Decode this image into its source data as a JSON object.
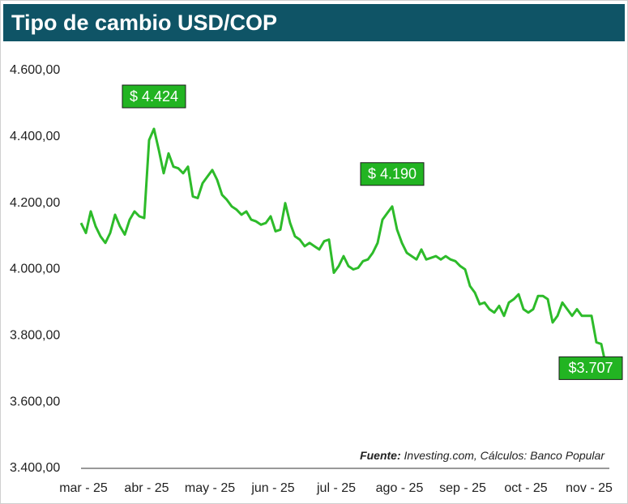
{
  "chart_data": {
    "type": "line",
    "title": "Tipo de cambio USD/COP",
    "categories": [
      "mar - 25",
      null,
      null,
      null,
      null,
      null,
      null,
      null,
      null,
      null,
      null,
      null,
      null,
      "abr - 25",
      null,
      null,
      null,
      null,
      null,
      null,
      null,
      null,
      null,
      null,
      null,
      null,
      "may - 25",
      null,
      null,
      null,
      null,
      null,
      null,
      null,
      null,
      null,
      null,
      null,
      null,
      "jun - 25",
      null,
      null,
      null,
      null,
      null,
      null,
      null,
      null,
      null,
      null,
      null,
      null,
      "jul - 25",
      null,
      null,
      null,
      null,
      null,
      null,
      null,
      null,
      null,
      null,
      null,
      null,
      "ago - 25",
      null,
      null,
      null,
      null,
      null,
      null,
      null,
      null,
      null,
      null,
      null,
      null,
      "sep - 25",
      null,
      null,
      null,
      null,
      null,
      null,
      null,
      null,
      null,
      null,
      null,
      null,
      "oct - 25",
      null,
      null,
      null,
      null,
      null,
      null,
      null,
      null,
      null,
      null,
      null,
      null,
      "nov - 25",
      null,
      null,
      null,
      null
    ],
    "values": [
      4140,
      4110,
      4175,
      4130,
      4100,
      4080,
      4110,
      4165,
      4130,
      4105,
      4150,
      4175,
      4160,
      4155,
      4390,
      4424,
      4360,
      4290,
      4350,
      4310,
      4305,
      4290,
      4310,
      4220,
      4215,
      4260,
      4280,
      4300,
      4270,
      4225,
      4210,
      4190,
      4180,
      4165,
      4175,
      4150,
      4145,
      4135,
      4140,
      4160,
      4115,
      4120,
      4200,
      4140,
      4100,
      4090,
      4070,
      4080,
      4070,
      4060,
      4085,
      4090,
      3990,
      4010,
      4040,
      4010,
      4000,
      4005,
      4025,
      4030,
      4050,
      4080,
      4150,
      4170,
      4190,
      4120,
      4080,
      4050,
      4040,
      4030,
      4060,
      4030,
      4035,
      4040,
      4030,
      4040,
      4030,
      4025,
      4010,
      4000,
      3950,
      3930,
      3895,
      3900,
      3880,
      3870,
      3890,
      3860,
      3900,
      3910,
      3925,
      3880,
      3870,
      3880,
      3920,
      3920,
      3910,
      3840,
      3860,
      3900,
      3880,
      3860,
      3880,
      3860,
      3860,
      3860,
      3780,
      3775,
      3707
    ],
    "value_labels": [
      null,
      null,
      null,
      null,
      null,
      null,
      null,
      null,
      null,
      null,
      null,
      null,
      null,
      null,
      null,
      "$ 4.424",
      null,
      null,
      null,
      null,
      null,
      null,
      null,
      null,
      null,
      null,
      null,
      null,
      null,
      null,
      null,
      null,
      null,
      null,
      null,
      null,
      null,
      null,
      null,
      null,
      null,
      null,
      null,
      null,
      null,
      null,
      null,
      null,
      null,
      null,
      null,
      null,
      null,
      null,
      null,
      null,
      null,
      null,
      null,
      null,
      null,
      null,
      null,
      null,
      "$ 4.190",
      null,
      null,
      null,
      null,
      null,
      null,
      null,
      null,
      null,
      null,
      null,
      null,
      null,
      null,
      null,
      null,
      null,
      null,
      null,
      null,
      null,
      null,
      null,
      null,
      null,
      null,
      null,
      null,
      null,
      null,
      null,
      null,
      null,
      null,
      null,
      null,
      null,
      null,
      null,
      null,
      null,
      null,
      null,
      "$3.707"
    ],
    "color": "#2dbb2a",
    "label_color": "#22b422",
    "ylim": [
      3400,
      4600
    ],
    "yticks": [
      {
        "value": 3400,
        "label": "3.400,00"
      },
      {
        "value": 3600,
        "label": "3.600,00"
      },
      {
        "value": 3800,
        "label": "3.800,00"
      },
      {
        "value": 4000,
        "label": "4.000,00"
      },
      {
        "value": 4200,
        "label": "4.200,00"
      },
      {
        "value": 4400,
        "label": "4.400,00"
      },
      {
        "value": 4600,
        "label": "4.600,00"
      }
    ],
    "grid": false,
    "source": {
      "label": "Fuente:",
      "text": "Investing.com, Cálculos:  Banco Popular"
    }
  }
}
